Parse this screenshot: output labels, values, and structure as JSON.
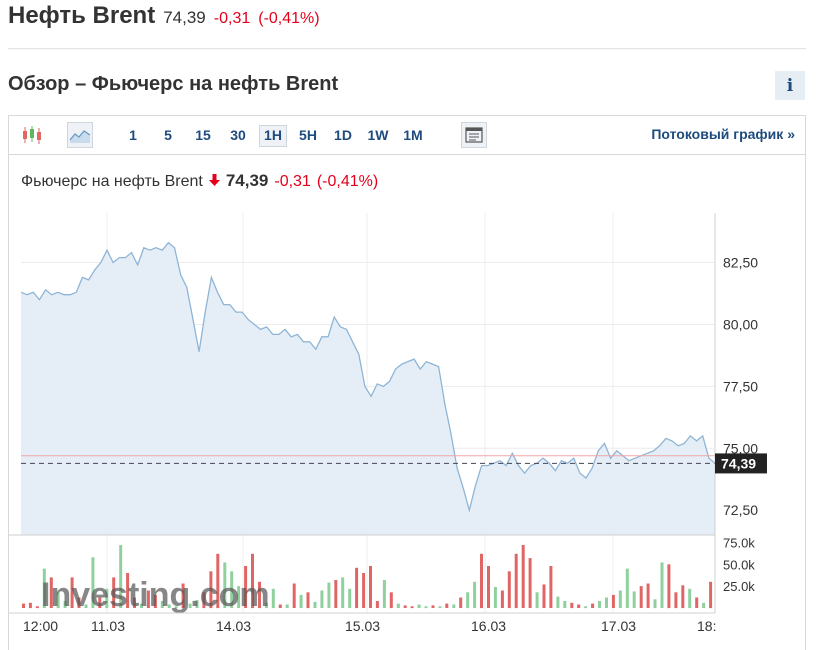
{
  "header": {
    "name": "Нефть Brent",
    "price": "74,39",
    "change": "-0,31",
    "change_pct": "(-0,41%)"
  },
  "section": {
    "title": "Обзор – Фьючерс на нефть Brent",
    "info_icon": "i"
  },
  "toolbar": {
    "chart_type_icons": [
      "candlestick-icon",
      "area-chart-icon"
    ],
    "timeframes": [
      "1",
      "5",
      "15",
      "30",
      "1H",
      "5H",
      "1D",
      "1W",
      "1M"
    ],
    "active_timeframe": "1H",
    "streaming_label": "Потоковый график",
    "streaming_chevron": "»"
  },
  "legend": {
    "name": "Фьючерс на нефть Brent",
    "arrow": "🡇",
    "price": "74,39",
    "change": "-0,31",
    "change_pct": "(-0,41%)"
  },
  "colors": {
    "accent": "#1e4b7d",
    "negative": "#e4001b",
    "line": "#8fb5d6",
    "area": "#e5eef6",
    "volume_up": "#8fd19e",
    "volume_down": "#e06666"
  },
  "chart_data": {
    "type": "area",
    "x_tick_labels": [
      "12:00",
      "11.03",
      "14.03",
      "15.03",
      "16.03",
      "17.03",
      "18:"
    ],
    "y_tick_labels": [
      "82,50",
      "80,00",
      "77,50",
      "75,00",
      "72,50"
    ],
    "ylim": [
      71.5,
      84.5
    ],
    "last_price": 74.39,
    "last_price_label": "74,39",
    "prev_close": 74.7,
    "price": [
      81.3,
      81.2,
      81.3,
      81.0,
      81.4,
      81.2,
      81.3,
      81.2,
      81.2,
      81.3,
      81.9,
      81.8,
      82.2,
      82.5,
      83.0,
      82.5,
      82.7,
      82.7,
      82.9,
      82.4,
      83.1,
      83.0,
      83.1,
      83.0,
      83.3,
      83.1,
      82.0,
      81.5,
      80.2,
      78.9,
      80.5,
      81.9,
      81.3,
      80.8,
      80.8,
      80.5,
      80.5,
      80.2,
      80.0,
      79.8,
      79.9,
      79.6,
      79.6,
      79.8,
      79.5,
      79.6,
      79.3,
      79.3,
      79.0,
      79.5,
      79.5,
      80.3,
      79.9,
      79.8,
      79.3,
      78.8,
      77.5,
      77.1,
      77.6,
      77.5,
      77.7,
      78.2,
      78.4,
      78.5,
      78.6,
      78.2,
      78.5,
      78.4,
      78.3,
      76.8,
      75.6,
      74.2,
      73.4,
      72.5,
      73.5,
      74.3,
      74.3,
      74.4,
      74.5,
      74.3,
      74.8,
      74.3,
      74.0,
      74.3,
      74.4,
      74.6,
      74.4,
      74.1,
      74.5,
      74.4,
      74.6,
      74.0,
      73.8,
      74.2,
      74.9,
      75.2,
      74.6,
      74.9,
      74.7,
      74.5,
      74.6,
      74.7,
      74.8,
      74.9,
      75.1,
      75.4,
      75.3,
      75.1,
      75.2,
      75.5,
      75.3,
      75.5,
      74.6,
      74.4
    ],
    "volume_ylim": [
      0,
      80
    ],
    "volume_tick_labels": [
      "75.0k",
      "50.0k",
      "25.0k"
    ],
    "volume": [
      5,
      6,
      2,
      45,
      35,
      18,
      8,
      35,
      12,
      4,
      58,
      12,
      22,
      35,
      72,
      40,
      12,
      5,
      20,
      15,
      8,
      4,
      2,
      28,
      5,
      9,
      18,
      42,
      62,
      52,
      42,
      25,
      48,
      62,
      30,
      6,
      22,
      4,
      4,
      28,
      15,
      18,
      7,
      20,
      29,
      32,
      35,
      22,
      46,
      40,
      48,
      8,
      32,
      18,
      5,
      3,
      2,
      4,
      2,
      3,
      2,
      5,
      4,
      12,
      18,
      30,
      62,
      48,
      24,
      20,
      42,
      62,
      72,
      57,
      18,
      27,
      48,
      13,
      8,
      6,
      4,
      2,
      5,
      8,
      12,
      15,
      20,
      45,
      19,
      25,
      28,
      10,
      52,
      50,
      18,
      26,
      22,
      12,
      6,
      30
    ],
    "volume_up": [
      false,
      false,
      false,
      true,
      false,
      true,
      true,
      false,
      false,
      true,
      true,
      false,
      true,
      false,
      true,
      false,
      false,
      true,
      false,
      false,
      true,
      true,
      true,
      false,
      true,
      true,
      false,
      false,
      false,
      true,
      true,
      true,
      false,
      false,
      false,
      true,
      true,
      false,
      true,
      false,
      true,
      false,
      true,
      true,
      true,
      false,
      true,
      true,
      false,
      false,
      false,
      false,
      true,
      false,
      true,
      false,
      false,
      true,
      true,
      false,
      true,
      false,
      true,
      false,
      true,
      true,
      false,
      false,
      true,
      false,
      false,
      false,
      false,
      false,
      true,
      false,
      false,
      true,
      true,
      false,
      false,
      true,
      false,
      true,
      true,
      false,
      true,
      true,
      true,
      false,
      false,
      true,
      true,
      false,
      false,
      false,
      true,
      false,
      true,
      false
    ],
    "watermark": "Investing.com"
  }
}
